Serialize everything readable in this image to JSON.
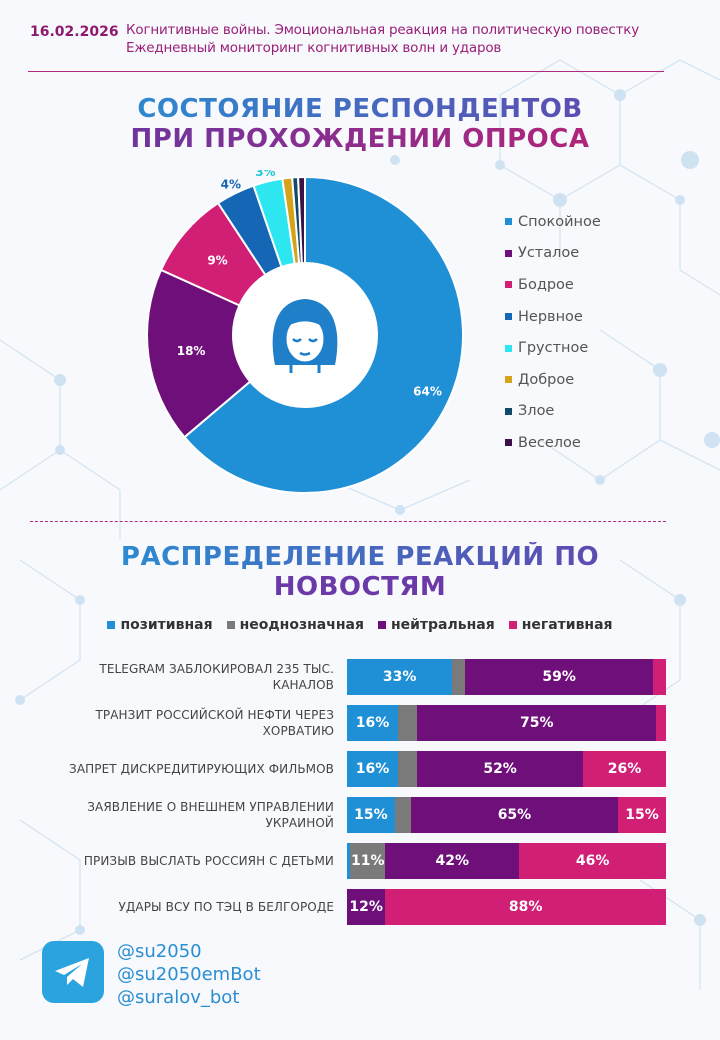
{
  "header": {
    "date": "16.02.2026",
    "subtitle_line1": "Когнитивные войны. Эмоциональная реакция на политическую повестку",
    "subtitle_line2": "Ежедневный мониторинг когнитивных волн и ударов"
  },
  "section1": {
    "title_line1": "СОСТОЯНИЕ РЕСПОНДЕНТОВ",
    "title_line2": "ПРИ ПРОХОЖДЕНИИ ОПРОСА"
  },
  "section2": {
    "title_line1": "РАСПРЕДЕЛЕНИЕ РЕАКЦИЙ ПО",
    "title_line2": "НОВОСТЯМ"
  },
  "footer": {
    "handles": [
      "@su2050",
      "@su2050emBot",
      "@suralov_bot"
    ],
    "icon": "telegram-icon"
  },
  "colors": {
    "accent_magenta": "#b02a84",
    "blue": "#1f8fd6"
  },
  "chart_data": [
    {
      "type": "pie",
      "title": "СОСТОЯНИЕ РЕСПОНДЕНТОВ ПРИ ПРОХОЖДЕНИИ ОПРОСА",
      "center_icon": "calm-woman-face-icon",
      "legend_position": "right",
      "slices": [
        {
          "name": "Спокойное",
          "value": 64,
          "label": "64%",
          "color": "#1f8fd6"
        },
        {
          "name": "Усталое",
          "value": 18,
          "label": "18%",
          "color": "#6e0f7a"
        },
        {
          "name": "Бодрое",
          "value": 9,
          "label": "9%",
          "color": "#d11f75"
        },
        {
          "name": "Нервное",
          "value": 4,
          "label": "4%",
          "color": "#1566b5"
        },
        {
          "name": "Грустное",
          "value": 3,
          "label": "3%",
          "color": "#2ee6f0"
        },
        {
          "name": "Доброе",
          "value": 1,
          "label": "",
          "color": "#d4a31a"
        },
        {
          "name": "Злое",
          "value": 0.6,
          "label": "",
          "color": "#124a6b"
        },
        {
          "name": "Веселое",
          "value": 0.7,
          "label": "",
          "color": "#3a1248"
        }
      ]
    },
    {
      "type": "bar",
      "orientation": "horizontal",
      "stacked": true,
      "legend_position": "top",
      "series": [
        {
          "name": "позитивная",
          "color": "#1f8fd6"
        },
        {
          "name": "неоднозначная",
          "color": "#7a7a7a"
        },
        {
          "name": "нейтральная",
          "color": "#6e0f7a"
        },
        {
          "name": "негативная",
          "color": "#d11f75"
        }
      ],
      "categories": [
        {
          "label": "TELEGRAM ЗАБЛОКИРОВАЛ 235 ТЫС. КАНАЛОВ",
          "values": [
            33,
            4,
            59,
            4
          ],
          "labels": [
            "33%",
            "",
            "59%",
            ""
          ]
        },
        {
          "label": "ТРАНЗИТ РОССИЙСКОЙ НЕФТИ ЧЕРЕЗ ХОРВАТИЮ",
          "values": [
            16,
            6,
            75,
            3
          ],
          "labels": [
            "16%",
            "",
            "75%",
            ""
          ]
        },
        {
          "label": "ЗАПРЕТ ДИСКРЕДИТИРУЮЩИХ ФИЛЬМОВ",
          "values": [
            16,
            6,
            52,
            26
          ],
          "labels": [
            "16%",
            "",
            "52%",
            "26%"
          ]
        },
        {
          "label": "ЗАЯВЛЕНИЕ О ВНЕШНЕМ УПРАВЛЕНИИ УКРАИНОЙ",
          "values": [
            15,
            5,
            65,
            15
          ],
          "labels": [
            "15%",
            "",
            "65%",
            "15%"
          ]
        },
        {
          "label": "ПРИЗЫВ ВЫСЛАТЬ РОССИЯН С ДЕТЬМИ",
          "values": [
            1,
            11,
            42,
            46
          ],
          "labels": [
            "",
            "11%",
            "42%",
            "46%"
          ]
        },
        {
          "label": "УДАРЫ ВСУ ПО ТЭЦ В БЕЛГОРОДЕ",
          "values": [
            0,
            0,
            12,
            88
          ],
          "labels": [
            "",
            "",
            "12%",
            "88%"
          ]
        }
      ]
    }
  ]
}
